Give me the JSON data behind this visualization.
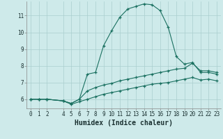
{
  "xlabel": "Humidex (Indice chaleur)",
  "bg_color": "#ceeaea",
  "grid_color": "#aacece",
  "line_color": "#1a7060",
  "xlim": [
    -0.5,
    23.5
  ],
  "ylim": [
    5.45,
    11.85
  ],
  "yticks": [
    6,
    7,
    8,
    9,
    10,
    11
  ],
  "xticks": [
    0,
    1,
    2,
    4,
    5,
    6,
    7,
    8,
    9,
    10,
    11,
    12,
    13,
    14,
    15,
    16,
    17,
    18,
    19,
    20,
    21,
    22,
    23
  ],
  "line1_x": [
    0,
    1,
    2,
    4,
    5,
    6,
    7,
    8,
    9,
    10,
    11,
    12,
    13,
    14,
    15,
    16,
    17,
    18,
    19,
    20,
    21,
    22,
    23
  ],
  "line1_y": [
    6.0,
    6.0,
    6.0,
    5.9,
    5.75,
    6.0,
    7.5,
    7.6,
    9.2,
    10.1,
    10.9,
    11.4,
    11.55,
    11.7,
    11.65,
    11.3,
    10.3,
    8.55,
    8.1,
    8.2,
    7.6,
    7.6,
    7.5
  ],
  "line2_x": [
    0,
    1,
    2,
    4,
    5,
    6,
    7,
    8,
    9,
    10,
    11,
    12,
    13,
    14,
    15,
    16,
    17,
    18,
    19,
    20,
    21,
    22,
    23
  ],
  "line2_y": [
    6.0,
    6.0,
    6.0,
    5.9,
    5.75,
    6.0,
    6.5,
    6.7,
    6.85,
    6.95,
    7.1,
    7.2,
    7.3,
    7.4,
    7.5,
    7.6,
    7.7,
    7.8,
    7.85,
    8.15,
    7.7,
    7.7,
    7.6
  ],
  "line3_x": [
    0,
    1,
    2,
    4,
    5,
    6,
    7,
    8,
    9,
    10,
    11,
    12,
    13,
    14,
    15,
    16,
    17,
    18,
    19,
    20,
    21,
    22,
    23
  ],
  "line3_y": [
    6.0,
    6.0,
    6.0,
    5.9,
    5.7,
    5.85,
    6.0,
    6.15,
    6.3,
    6.4,
    6.5,
    6.6,
    6.7,
    6.8,
    6.9,
    6.95,
    7.0,
    7.1,
    7.2,
    7.3,
    7.15,
    7.2,
    7.1
  ]
}
